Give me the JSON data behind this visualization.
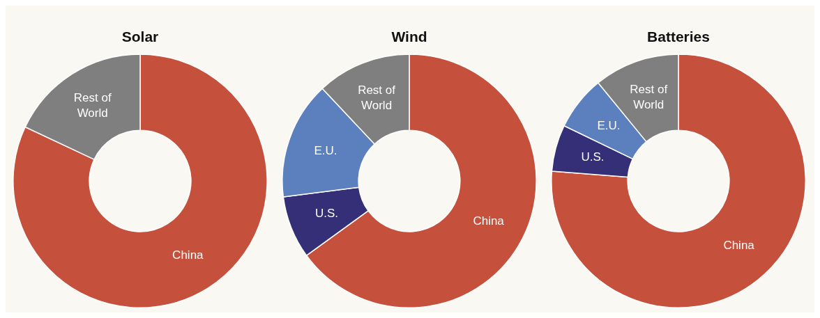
{
  "chart_data": [
    {
      "type": "donut",
      "title": "Solar",
      "categories": [
        "China",
        "Rest of World"
      ],
      "values": [
        82,
        18
      ],
      "colors": [
        "#c5503b",
        "#7f7f7f"
      ]
    },
    {
      "type": "donut",
      "title": "Wind",
      "categories": [
        "China",
        "U.S.",
        "E.U.",
        "Rest of World"
      ],
      "values": [
        65,
        8,
        15,
        12
      ],
      "colors": [
        "#c5503b",
        "#342f76",
        "#5b80bd",
        "#7f7f7f"
      ]
    },
    {
      "type": "donut",
      "title": "Batteries",
      "categories": [
        "China",
        "U.S.",
        "E.U.",
        "Rest of World"
      ],
      "values": [
        77,
        6,
        7,
        11
      ],
      "colors": [
        "#c5503b",
        "#342f76",
        "#5b80bd",
        "#7f7f7f"
      ]
    }
  ]
}
